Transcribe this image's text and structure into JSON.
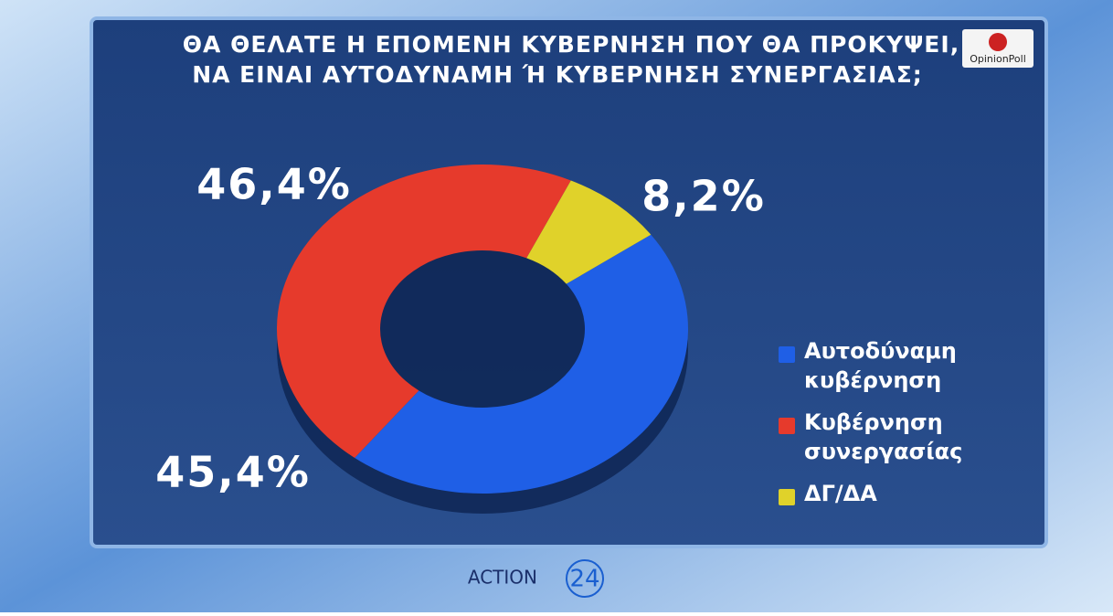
{
  "chart_data": {
    "type": "donut",
    "title": [
      "ΘΑ ΘΕΛΑΤΕ Η ΕΠΟΜΕΝΗ ΚΥΒΕΡΝΗΣΗ ΠΟΥ ΘΑ ΠΡΟΚΥΨΕΙ,",
      "ΝΑ ΕΙΝΑΙ ΑΥΤΟΔΥΝΑΜΗ Ή ΚΥΒΕΡΝΗΣΗ ΣΥΝΕΡΓΑΣΙΑΣ;"
    ],
    "categories": [
      "Αυτοδύναμη κυβέρνηση",
      "Κυβέρνηση συνεργασίας",
      "ΔΓ/ΔΑ"
    ],
    "values": [
      45.4,
      46.4,
      8.2
    ],
    "value_labels": [
      "45,4%",
      "46,4%",
      "8,2%"
    ],
    "colors": [
      "#1f5fe6",
      "#e63a2c",
      "#e0d22a"
    ],
    "legend": "right"
  },
  "branding": {
    "source": "OpinionPoll",
    "channel": "ACTION",
    "channel_number": "24"
  }
}
